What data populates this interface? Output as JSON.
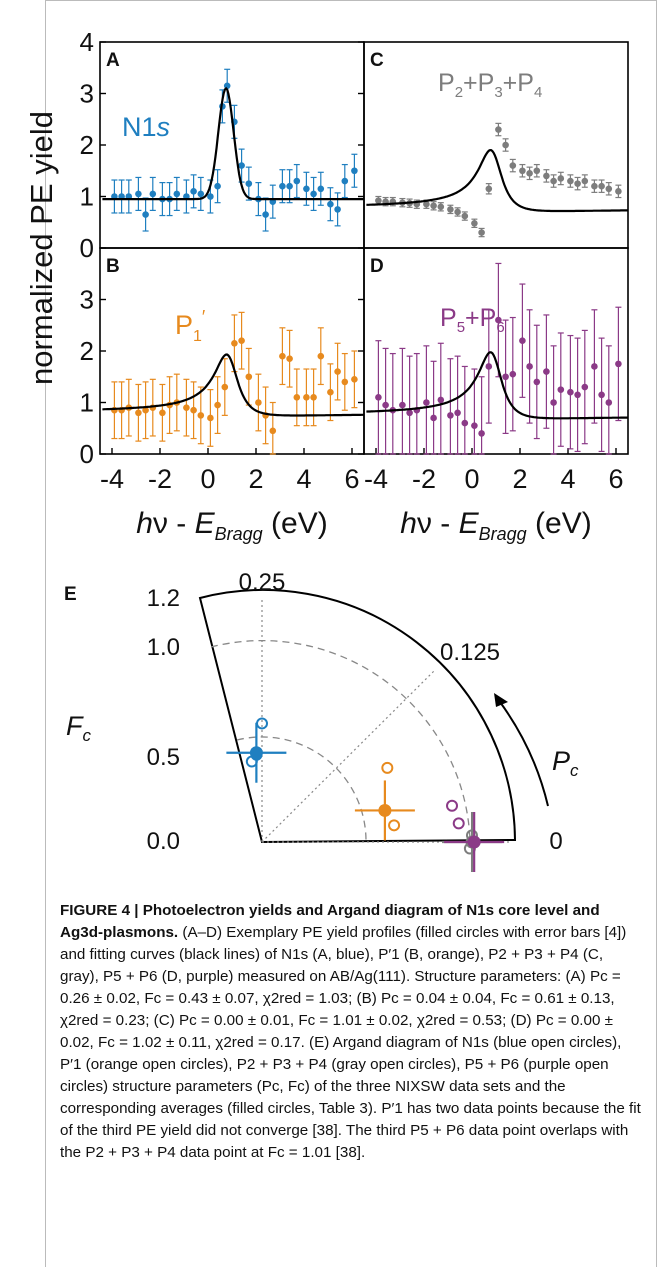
{
  "chart_data": [
    {
      "type": "scatter",
      "panel": "A",
      "label": "N1s",
      "color": "#1f7fc0",
      "xlim": [
        -4.5,
        6.5
      ],
      "ylim": [
        0,
        4
      ],
      "yticks": [
        "0",
        "1",
        "2",
        "3",
        "4"
      ],
      "ylabel": "normalized PE yield",
      "x": [
        -3.9,
        -3.6,
        -3.3,
        -2.9,
        -2.6,
        -2.3,
        -1.9,
        -1.6,
        -1.3,
        -0.9,
        -0.6,
        -0.3,
        0.1,
        0.4,
        0.6,
        0.8,
        1.1,
        1.4,
        1.7,
        2.1,
        2.4,
        2.7,
        3.1,
        3.4,
        3.7,
        4.1,
        4.4,
        4.7,
        5.1,
        5.4,
        5.7,
        6.1
      ],
      "y": [
        1.0,
        1.0,
        1.0,
        1.05,
        0.65,
        1.05,
        0.95,
        0.95,
        1.05,
        1.0,
        1.1,
        1.05,
        1.0,
        1.2,
        2.75,
        3.15,
        2.45,
        1.6,
        1.25,
        0.95,
        0.65,
        0.9,
        1.2,
        1.2,
        1.3,
        1.15,
        1.05,
        1.15,
        0.85,
        0.75,
        1.3,
        1.5
      ],
      "err": [
        0.32,
        0.32,
        0.32,
        0.32,
        0.32,
        0.32,
        0.32,
        0.32,
        0.32,
        0.32,
        0.32,
        0.32,
        0.32,
        0.32,
        0.32,
        0.32,
        0.32,
        0.32,
        0.32,
        0.32,
        0.32,
        0.32,
        0.32,
        0.32,
        0.32,
        0.32,
        0.32,
        0.32,
        0.32,
        0.32,
        0.32,
        0.32
      ],
      "fit": {
        "Pc": 0.26,
        "Fc": 0.43
      }
    },
    {
      "type": "scatter",
      "panel": "C",
      "label": "P2+P3+P4",
      "color": "#7d7d7d",
      "xlim": [
        -4.5,
        6.5
      ],
      "ylim": [
        0,
        4
      ],
      "x": [
        -3.9,
        -3.6,
        -3.3,
        -2.9,
        -2.6,
        -2.3,
        -1.9,
        -1.6,
        -1.3,
        -0.9,
        -0.6,
        -0.3,
        0.1,
        0.4,
        0.7,
        1.1,
        1.4,
        1.7,
        2.1,
        2.4,
        2.7,
        3.1,
        3.4,
        3.7,
        4.1,
        4.4,
        4.7,
        5.1,
        5.4,
        5.7,
        6.1
      ],
      "y": [
        0.92,
        0.9,
        0.9,
        0.88,
        0.87,
        0.85,
        0.85,
        0.82,
        0.8,
        0.75,
        0.7,
        0.62,
        0.48,
        0.3,
        1.15,
        2.3,
        2.0,
        1.6,
        1.5,
        1.45,
        1.5,
        1.4,
        1.3,
        1.35,
        1.3,
        1.25,
        1.3,
        1.2,
        1.2,
        1.15,
        1.1
      ],
      "err": [
        0.08,
        0.08,
        0.08,
        0.08,
        0.08,
        0.08,
        0.08,
        0.08,
        0.08,
        0.08,
        0.08,
        0.08,
        0.08,
        0.08,
        0.1,
        0.12,
        0.12,
        0.12,
        0.12,
        0.12,
        0.12,
        0.12,
        0.12,
        0.12,
        0.12,
        0.12,
        0.12,
        0.12,
        0.12,
        0.12,
        0.12
      ],
      "fit": {
        "Pc": 0.0,
        "Fc": 1.01
      }
    },
    {
      "type": "scatter",
      "panel": "B",
      "label": "P1′",
      "color": "#e78a1e",
      "xlim": [
        -4.5,
        6.5
      ],
      "ylim": [
        0,
        4
      ],
      "yticks": [
        "0",
        "1",
        "2",
        "3",
        "4"
      ],
      "xticks": [
        "-4",
        "-2",
        "0",
        "2",
        "4",
        "6"
      ],
      "x": [
        -3.9,
        -3.6,
        -3.3,
        -2.9,
        -2.6,
        -2.3,
        -1.9,
        -1.6,
        -1.3,
        -0.9,
        -0.6,
        -0.3,
        0.1,
        0.4,
        0.7,
        1.1,
        1.4,
        1.7,
        2.1,
        2.4,
        2.7,
        3.1,
        3.4,
        3.7,
        4.1,
        4.4,
        4.7,
        5.1,
        5.4,
        5.7,
        6.1
      ],
      "y": [
        0.85,
        0.85,
        0.9,
        0.8,
        0.85,
        0.9,
        0.8,
        0.95,
        1.0,
        0.9,
        0.85,
        0.75,
        0.7,
        0.95,
        1.3,
        2.15,
        2.2,
        1.5,
        1.0,
        0.75,
        0.45,
        1.9,
        1.85,
        1.1,
        1.1,
        1.1,
        1.9,
        1.2,
        1.6,
        1.4,
        1.45
      ],
      "err": [
        0.55,
        0.55,
        0.55,
        0.55,
        0.55,
        0.55,
        0.55,
        0.55,
        0.55,
        0.55,
        0.55,
        0.55,
        0.55,
        0.55,
        0.55,
        0.55,
        0.55,
        0.55,
        0.55,
        0.55,
        0.55,
        0.55,
        0.55,
        0.55,
        0.55,
        0.55,
        0.55,
        0.55,
        0.55,
        0.55,
        0.55
      ],
      "fit": {
        "Pc": 0.04,
        "Fc": 0.61
      }
    },
    {
      "type": "scatter",
      "panel": "D",
      "label": "P5+P6",
      "color": "#8b3a87",
      "xlim": [
        -4.5,
        6.5
      ],
      "ylim": [
        0,
        4
      ],
      "xticks": [
        "-4",
        "-2",
        "0",
        "2",
        "4",
        "6"
      ],
      "x": [
        -3.9,
        -3.6,
        -3.3,
        -2.9,
        -2.6,
        -2.3,
        -1.9,
        -1.6,
        -1.3,
        -0.9,
        -0.6,
        -0.3,
        0.1,
        0.4,
        0.7,
        1.1,
        1.4,
        1.7,
        2.1,
        2.4,
        2.7,
        3.1,
        3.4,
        3.7,
        4.1,
        4.4,
        4.7,
        5.1,
        5.4,
        5.7,
        6.1
      ],
      "y": [
        1.1,
        0.95,
        0.85,
        0.95,
        0.8,
        0.85,
        1.0,
        0.7,
        1.05,
        0.75,
        0.8,
        0.6,
        0.55,
        0.4,
        1.7,
        2.6,
        1.5,
        1.55,
        2.2,
        1.7,
        1.4,
        1.6,
        1.0,
        1.25,
        1.2,
        1.15,
        1.3,
        1.7,
        1.15,
        1.0,
        1.75
      ],
      "err": [
        1.1,
        1.1,
        1.1,
        1.1,
        1.1,
        1.1,
        1.1,
        1.1,
        1.1,
        1.1,
        1.1,
        1.1,
        1.1,
        1.1,
        1.1,
        1.1,
        1.1,
        1.1,
        1.1,
        1.1,
        1.1,
        1.1,
        1.1,
        1.1,
        1.1,
        1.1,
        1.1,
        1.1,
        1.1,
        1.1,
        1.1
      ],
      "fit": {
        "Pc": 0.0,
        "Fc": 1.02
      }
    },
    {
      "type": "scatter",
      "panel": "E",
      "polar": true,
      "rlim": [
        0,
        1.2
      ],
      "rticks": [
        "0.0",
        "0.5",
        "1.0",
        "1.2"
      ],
      "angle_labels": [
        "0.25",
        "0.125",
        "0"
      ],
      "rlabel": "Fc",
      "alabel": "Pc",
      "points": [
        {
          "name": "N1s",
          "color": "#1f7fc0",
          "avg": {
            "Pc": 0.26,
            "Fc": 0.43
          },
          "open": [
            {
              "Pc": 0.25,
              "Fc": 0.57
            },
            {
              "Pc": 0.26,
              "Fc": 0.42
            },
            {
              "Pc": 0.27,
              "Fc": 0.39
            }
          ]
        },
        {
          "name": "P1′",
          "color": "#e78a1e",
          "avg": {
            "Pc": 0.04,
            "Fc": 0.61
          },
          "open": [
            {
              "Pc": 0.085,
              "Fc": 0.7
            },
            {
              "Pc": 0.02,
              "Fc": 0.64
            }
          ]
        },
        {
          "name": "P2+P3+P4",
          "color": "#7d7d7d",
          "avg": {
            "Pc": 0.0,
            "Fc": 1.01
          },
          "open": [
            {
              "Pc": 0.005,
              "Fc": 1.01
            },
            {
              "Pc": -0.005,
              "Fc": 1.0
            }
          ]
        },
        {
          "name": "P5+P6",
          "color": "#8b3a87",
          "avg": {
            "Pc": 0.0,
            "Fc": 1.02
          },
          "open": [
            {
              "Pc": 0.03,
              "Fc": 0.93
            },
            {
              "Pc": 0.015,
              "Fc": 0.95
            }
          ]
        }
      ]
    }
  ],
  "labels": {
    "ylabel": "normalized PE yield",
    "xlabel_main": "hν - E",
    "xlabel_sub": "Bragg",
    "xlabel_unit": " (eV)",
    "panel_A": "A",
    "panel_B": "B",
    "panel_C": "C",
    "panel_D": "D",
    "panel_E": "E",
    "series_A": "N1s",
    "series_B": "P1′",
    "series_C": "P2+P3+P4",
    "series_D": "P5+P6",
    "polar_r_label": "Fc",
    "polar_a_label": "Pc",
    "polar_top": "0.25",
    "polar_mid": "0.125",
    "polar_zero": "0",
    "polar_r12": "1.2",
    "polar_r10": "1.0",
    "polar_r05": "0.5",
    "polar_r00": "0.0"
  },
  "caption": {
    "title": "FIGURE 4 | Photoelectron yields and Argand diagram of N1s core level and Ag3d-plasmons.",
    "body": "(A–D) Exemplary PE yield profiles (filled circles with error bars [4]) and fitting curves (black lines) of N1s (A, blue), P′1 (B, orange), P2 + P3 + P4 (C, gray), P5 + P6 (D, purple) measured on AB/Ag(111). Structure parameters: (A) Pc = 0.26 ± 0.02, Fc = 0.43 ± 0.07, χ2red = 1.03; (B) Pc = 0.04 ± 0.04, Fc = 0.61 ± 0.13, χ2red = 0.23; (C) Pc = 0.00 ± 0.01, Fc = 1.01 ± 0.02, χ2red = 0.53; (D) Pc = 0.00 ± 0.02, Fc = 1.02 ± 0.11, χ2red = 0.17. (E) Argand diagram of N1s (blue open circles), P′1 (orange open circles), P2 + P3 + P4 (gray open circles), P5 + P6 (purple open circles) structure parameters (Pc, Fc) of the three NIXSW data sets and the corresponding averages (filled circles, Table 3). P′1 has two data points because the fit of the third PE yield did not converge [38]. The third P5 + P6 data point overlaps with the P2 + P3 + P4 data point at Fc = 1.01 [38]."
  }
}
